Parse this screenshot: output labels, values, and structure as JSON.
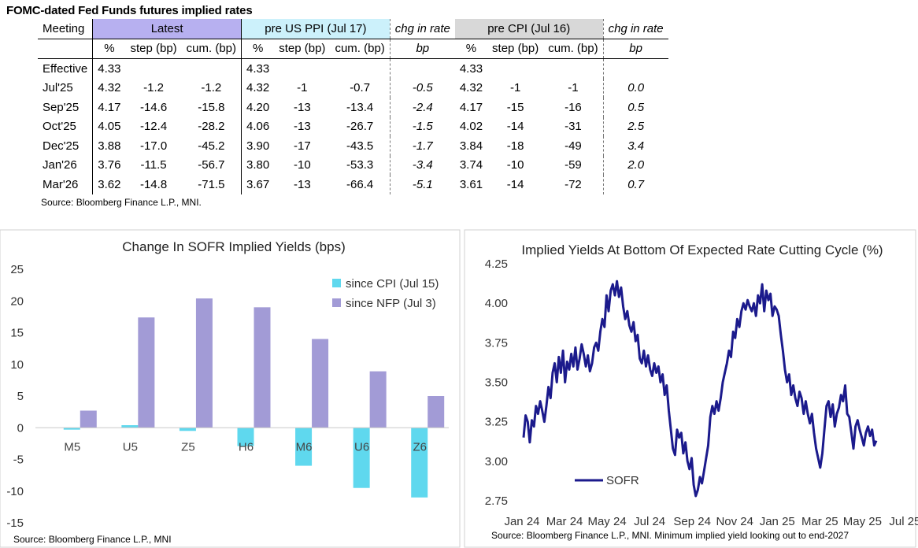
{
  "table": {
    "title": "FOMC-dated Fed Funds futures implied rates",
    "meeting_label": "Meeting",
    "groups": {
      "latest": "Latest",
      "pre_ppi": "pre US PPI (Jul 17)",
      "chg1": "chg in rate",
      "pre_cpi": "pre CPI (Jul 16)",
      "chg2": "chg in rate"
    },
    "subheaders": {
      "pct": "%",
      "step": "step (bp)",
      "cum": "cum. (bp)",
      "bp": "bp"
    },
    "rows": [
      {
        "meeting": "Effective",
        "latest": [
          "4.33",
          "",
          ""
        ],
        "ppi": [
          "4.33",
          "",
          ""
        ],
        "chg_ppi": "",
        "cpi": [
          "4.33",
          "",
          ""
        ],
        "chg_cpi": ""
      },
      {
        "meeting": "Jul'25",
        "latest": [
          "4.32",
          "-1.2",
          "-1.2"
        ],
        "ppi": [
          "4.32",
          "-1",
          "-0.7"
        ],
        "chg_ppi": "-0.5",
        "cpi": [
          "4.32",
          "-1",
          "-1"
        ],
        "chg_cpi": "0.0"
      },
      {
        "meeting": "Sep'25",
        "latest": [
          "4.17",
          "-14.6",
          "-15.8"
        ],
        "ppi": [
          "4.20",
          "-13",
          "-13.4"
        ],
        "chg_ppi": "-2.4",
        "cpi": [
          "4.17",
          "-15",
          "-16"
        ],
        "chg_cpi": "0.5"
      },
      {
        "meeting": "Oct'25",
        "latest": [
          "4.05",
          "-12.4",
          "-28.2"
        ],
        "ppi": [
          "4.06",
          "-13",
          "-26.7"
        ],
        "chg_ppi": "-1.5",
        "cpi": [
          "4.02",
          "-14",
          "-31"
        ],
        "chg_cpi": "2.5"
      },
      {
        "meeting": "Dec'25",
        "latest": [
          "3.88",
          "-17.0",
          "-45.2"
        ],
        "ppi": [
          "3.90",
          "-17",
          "-43.5"
        ],
        "chg_ppi": "-1.7",
        "cpi": [
          "3.84",
          "-18",
          "-49"
        ],
        "chg_cpi": "3.4"
      },
      {
        "meeting": "Jan'26",
        "latest": [
          "3.76",
          "-11.5",
          "-56.7"
        ],
        "ppi": [
          "3.80",
          "-10",
          "-53.3"
        ],
        "chg_ppi": "-3.4",
        "cpi": [
          "3.74",
          "-10",
          "-59"
        ],
        "chg_cpi": "2.0"
      },
      {
        "meeting": "Mar'26",
        "latest": [
          "3.62",
          "-14.8",
          "-71.5"
        ],
        "ppi": [
          "3.67",
          "-13",
          "-66.4"
        ],
        "chg_ppi": "-5.1",
        "cpi": [
          "3.61",
          "-14",
          "-72"
        ],
        "chg_cpi": "0.7"
      }
    ],
    "source": "Source: Bloomberg Finance L.P., MNI."
  },
  "chart_data": [
    {
      "type": "bar",
      "title": "Change In SOFR Implied Yields (bps)",
      "categories": [
        "M5",
        "U5",
        "Z5",
        "H6",
        "M6",
        "U6",
        "Z6"
      ],
      "series": [
        {
          "name": "since CPI (Jul 15)",
          "color": "#5fd8ee",
          "values": [
            -0.3,
            0.4,
            -0.5,
            -2.9,
            -6.0,
            -9.5,
            -11.0
          ]
        },
        {
          "name": "since NFP (Jul 3)",
          "color": "#a29bd6",
          "values": [
            2.7,
            17.4,
            20.4,
            19.0,
            14.0,
            8.9,
            5.0
          ]
        }
      ],
      "ylim": [
        -15,
        25
      ],
      "yticks": [
        "-15",
        "-10",
        "-5",
        "0",
        "5",
        "10",
        "15",
        "20",
        "25"
      ],
      "xlabel": "",
      "ylabel": "",
      "legend": "upper-right",
      "source": "Source: Bloomberg Finance L.P., MNI"
    },
    {
      "type": "line",
      "title": "Implied Yields At Bottom Of Expected Rate Cutting Cycle (%)",
      "series": [
        {
          "name": "SOFR",
          "color": "#1b1a8c",
          "values": [
            3.15,
            3.29,
            3.25,
            3.12,
            3.26,
            3.22,
            3.35,
            3.3,
            3.38,
            3.32,
            3.25,
            3.35,
            3.47,
            3.4,
            3.56,
            3.62,
            3.5,
            3.66,
            3.56,
            3.7,
            3.5,
            3.63,
            3.58,
            3.68,
            3.6,
            3.72,
            3.58,
            3.65,
            3.74,
            3.68,
            3.6,
            3.67,
            3.57,
            3.62,
            3.72,
            3.75,
            3.7,
            3.82,
            3.9,
            3.85,
            4.05,
            3.95,
            4.08,
            4.12,
            4.05,
            4.14,
            4.04,
            4.1,
            3.98,
            3.9,
            3.95,
            3.86,
            3.82,
            3.88,
            3.76,
            3.8,
            3.65,
            3.62,
            3.7,
            3.6,
            3.67,
            3.58,
            3.54,
            3.62,
            3.56,
            3.6,
            3.5,
            3.55,
            3.42,
            3.48,
            3.32,
            3.2,
            3.08,
            3.04,
            3.2,
            3.15,
            3.18,
            3.05,
            3.12,
            3.0,
            2.95,
            3.02,
            2.85,
            2.78,
            2.82,
            2.9,
            2.86,
            2.94,
            3.02,
            3.1,
            3.28,
            3.35,
            3.3,
            3.38,
            3.32,
            3.4,
            3.5,
            3.56,
            3.62,
            3.7,
            3.66,
            3.82,
            3.78,
            3.9,
            3.85,
            3.95,
            4.0,
            3.96,
            4.02,
            3.98,
            3.95,
            4.0,
            3.92,
            4.05,
            4.0,
            4.12,
            3.95,
            4.08,
            4.02,
            4.06,
            3.92,
            3.98,
            3.96,
            3.92,
            3.8,
            3.7,
            3.58,
            3.5,
            3.55,
            3.42,
            3.48,
            3.4,
            3.35,
            3.44,
            3.4,
            3.3,
            3.38,
            3.3,
            3.24,
            3.3,
            3.18,
            3.08,
            3.02,
            2.96,
            3.05,
            3.2,
            3.35,
            3.38,
            3.28,
            3.36,
            3.22,
            3.3,
            3.34,
            3.42,
            3.38,
            3.48,
            3.3,
            3.28,
            3.18,
            3.08,
            3.22,
            3.26,
            3.2,
            3.15,
            3.1,
            3.18,
            3.22,
            3.16,
            3.2,
            3.1,
            3.13
          ]
        }
      ],
      "ylim": [
        2.75,
        4.25
      ],
      "yticks": [
        "2.75",
        "3.00",
        "3.25",
        "3.50",
        "3.75",
        "4.00",
        "4.25"
      ],
      "xticks": [
        "Jan 24",
        "Mar 24",
        "May 24",
        "Jul 24",
        "Sep 24",
        "Nov 24",
        "Jan 25",
        "Mar 25",
        "May 25",
        "Jul 25"
      ],
      "xlabel": "",
      "ylabel": "",
      "legend": "lower-left",
      "source": "Source: Bloomberg Finance L.P., MNI. Minimum implied yield looking out to end-2027"
    }
  ]
}
